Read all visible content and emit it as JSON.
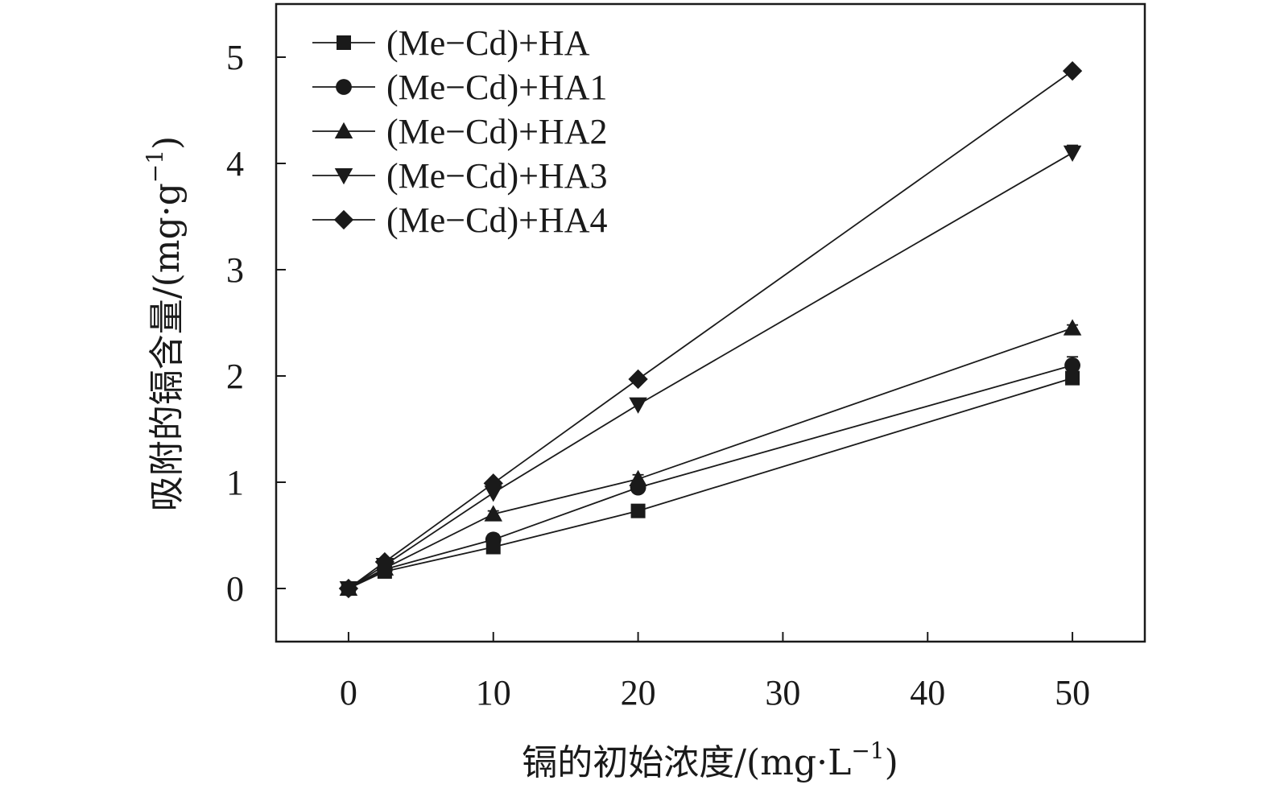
{
  "chart_data": {
    "type": "line",
    "title": "",
    "xlabel": "镉的初始浓度/(mg·L",
    "xlabel_sup": "−1",
    "xlabel_tail": ")",
    "ylabel": "吸附的镉含量/(mg·g",
    "ylabel_sup": "−1",
    "ylabel_tail": ")",
    "xlim": [
      -5,
      55
    ],
    "ylim": [
      -0.5,
      5.5
    ],
    "xticks": [
      0,
      10,
      20,
      30,
      40,
      50
    ],
    "yticks": [
      0,
      1,
      2,
      3,
      4,
      5
    ],
    "grid": false,
    "legend_position": "top-left",
    "x": [
      0,
      2.5,
      10,
      20,
      50
    ],
    "series": [
      {
        "name": "(Me−Cd)+HA",
        "marker": "square",
        "values": [
          0,
          0.16,
          0.39,
          0.73,
          1.98
        ]
      },
      {
        "name": "(Me−Cd)+HA1",
        "marker": "circle",
        "values": [
          0,
          0.18,
          0.46,
          0.95,
          2.1
        ],
        "errors": [
          0,
          0.02,
          0.05,
          0.04,
          0.08
        ]
      },
      {
        "name": "(Me−Cd)+HA2",
        "marker": "triangle-up",
        "values": [
          0,
          0.19,
          0.7,
          1.03,
          2.45
        ],
        "errors": [
          0,
          0.02,
          0.03,
          0.04,
          0.03
        ]
      },
      {
        "name": "(Me−Cd)+HA3",
        "marker": "triangle-down",
        "values": [
          0,
          0.22,
          0.9,
          1.73,
          4.1
        ],
        "errors": [
          0,
          0.02,
          0.05,
          0.04,
          0.07
        ]
      },
      {
        "name": "(Me−Cd)+HA4",
        "marker": "diamond",
        "values": [
          0,
          0.25,
          0.99,
          1.97,
          4.87
        ]
      }
    ],
    "color": "#1a1a1a"
  }
}
